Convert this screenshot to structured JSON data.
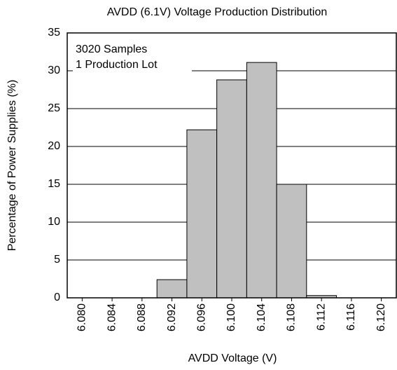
{
  "chart_data": {
    "type": "histogram",
    "title": "AVDD (6.1V) Voltage Production Distribution",
    "xlabel": "AVDD Voltage (V)",
    "ylabel": "Percentage of Power Supplies (%)",
    "annotations": [
      "3020 Samples",
      "1 Production Lot"
    ],
    "bins": [
      6.078,
      6.082,
      6.086,
      6.09,
      6.094,
      6.098,
      6.102,
      6.106,
      6.11,
      6.114,
      6.118,
      6.122
    ],
    "values": [
      0,
      0,
      0,
      2.4,
      22.2,
      28.8,
      31.1,
      15.0,
      0.3,
      0,
      0
    ],
    "color": "#c0c0c0",
    "xlim": [
      6.078,
      6.122
    ],
    "xticks": [
      {
        "value": 6.08,
        "label": "6.080"
      },
      {
        "value": 6.084,
        "label": "6.084"
      },
      {
        "value": 6.088,
        "label": "6.088"
      },
      {
        "value": 6.092,
        "label": "6.092"
      },
      {
        "value": 6.096,
        "label": "6.096"
      },
      {
        "value": 6.1,
        "label": "6.100"
      },
      {
        "value": 6.104,
        "label": "6.104"
      },
      {
        "value": 6.108,
        "label": "6.108"
      },
      {
        "value": 6.112,
        "label": "6.112"
      },
      {
        "value": 6.116,
        "label": "6.116"
      },
      {
        "value": 6.12,
        "label": "6.120"
      }
    ],
    "ylim": [
      0,
      35
    ],
    "yticks": [
      0,
      5,
      10,
      15,
      20,
      25,
      30,
      35
    ],
    "grid": true
  }
}
